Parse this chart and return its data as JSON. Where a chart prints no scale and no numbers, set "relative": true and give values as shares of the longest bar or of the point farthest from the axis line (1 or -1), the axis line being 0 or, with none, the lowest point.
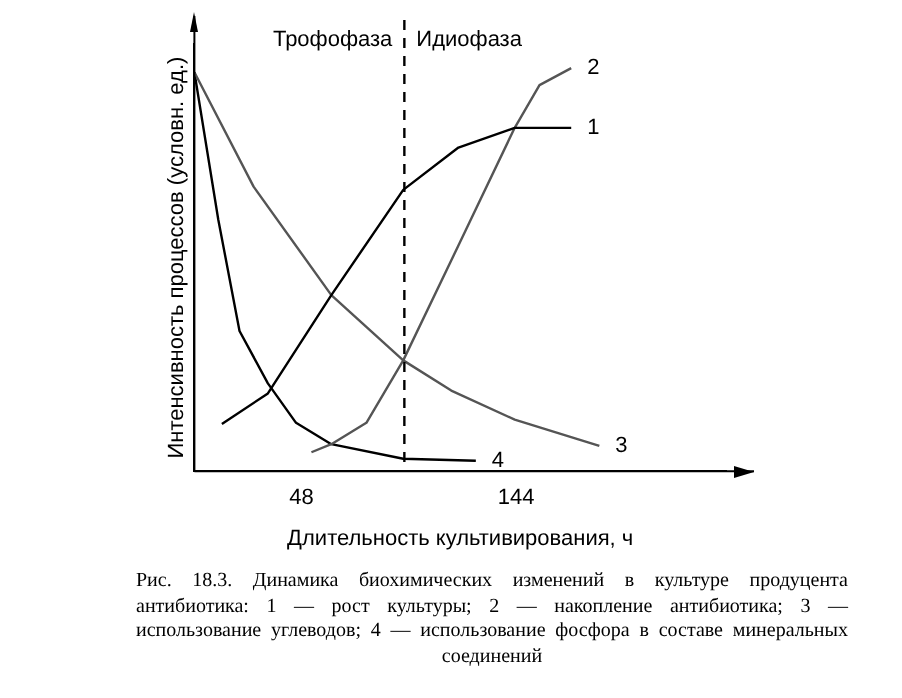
{
  "chart_data": {
    "type": "line",
    "relative": true,
    "xlabel": "Длительность культивирования, ч",
    "ylabel": "Интенсивность процессов (условн. ед.)",
    "xlim": [
      0,
      238
    ],
    "xticks": [
      48,
      144
    ],
    "grid": false,
    "legend": false,
    "marker": "none",
    "line_style": "solid",
    "series": [
      {
        "name": "1",
        "color": "#000000",
        "x": [
          12.3,
          32.9,
          61.3,
          93.5,
          118.2,
          143.4,
          168.7
        ],
        "values": [
          0.117,
          0.193,
          0.437,
          0.698,
          0.803,
          0.852,
          0.852
        ]
      },
      {
        "name": "2",
        "color": "#555555",
        "x": [
          52.4,
          61.3,
          77,
          93.5,
          118.2,
          143.4,
          154.5,
          168.7
        ],
        "values": [
          0.047,
          0.067,
          0.12,
          0.275,
          0.56,
          0.852,
          0.958,
          1
        ]
      },
      {
        "name": "3",
        "color": "#555555",
        "x": [
          0,
          26.5,
          61.3,
          93.5,
          115,
          143.4,
          181.3
        ],
        "values": [
          0.99,
          0.706,
          0.437,
          0.275,
          0.2,
          0.128,
          0.063
        ]
      },
      {
        "name": "4",
        "color": "#000000",
        "x": [
          0,
          10.7,
          20.2,
          32.9,
          45.5,
          61.3,
          93.5,
          126
        ],
        "values": [
          0.99,
          0.624,
          0.348,
          0.218,
          0.12,
          0.067,
          0.031,
          0.026
        ]
      }
    ],
    "ref_lines": [
      {
        "axis": "x",
        "value": 94,
        "line_style": "dashed",
        "color": "#000000"
      }
    ],
    "annotations": [
      "Трофофаза",
      "Идиофаза",
      "Рис. 18.3. Динамика биохимических изменений в культуре продуцента антибиотика: 1 — рост культуры; 2 — накопление антибиотика; 3 — использование углеводов; 4 — использование фосфора в составе минеральных соединений"
    ]
  }
}
